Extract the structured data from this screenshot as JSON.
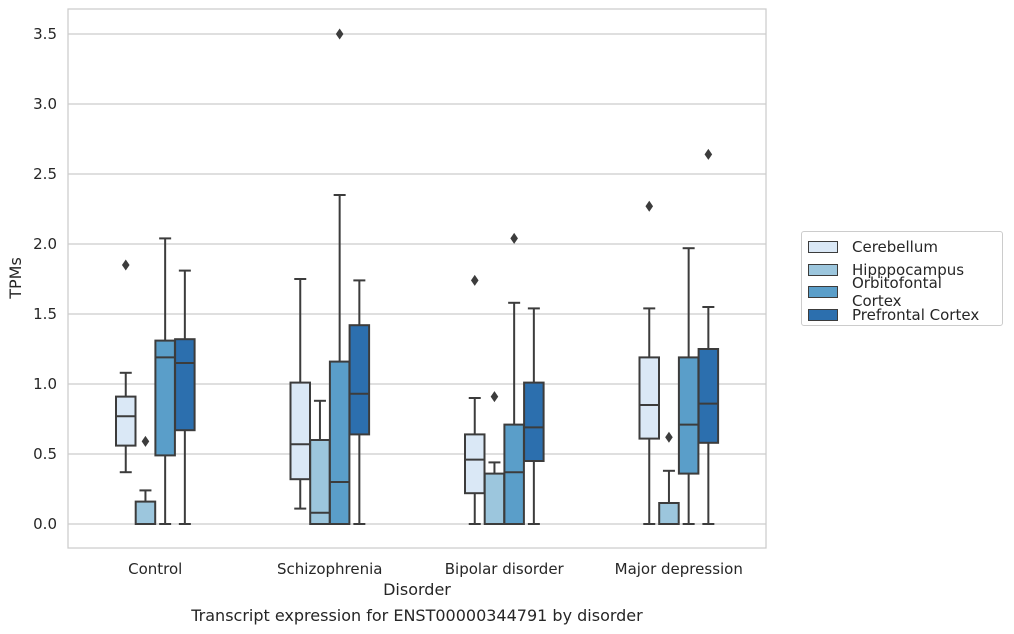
{
  "chart_data": {
    "type": "box",
    "title": "",
    "caption": "Transcript expression for ENST00000344791 by disorder",
    "xlabel": "Disorder",
    "ylabel": "TPMs",
    "ylim": [
      -0.16,
      3.68
    ],
    "yticks": [
      "0.0",
      "0.5",
      "1.0",
      "1.5",
      "2.0",
      "2.5",
      "3.0",
      "3.5"
    ],
    "grid": "horizontal",
    "legend_position": "right",
    "categories": [
      "Control",
      "Schizophrenia",
      "Bipolar disorder",
      "Major depression"
    ],
    "series": [
      {
        "name": "Cerebellum",
        "color": "#dae8f6",
        "boxes": [
          {
            "whislo": 0.37,
            "q1": 0.56,
            "med": 0.77,
            "q3": 0.91,
            "whishi": 1.08,
            "fliers": [
              1.85
            ]
          },
          {
            "whislo": 0.11,
            "q1": 0.32,
            "med": 0.57,
            "q3": 1.01,
            "whishi": 1.75,
            "fliers": []
          },
          {
            "whislo": 0.0,
            "q1": 0.22,
            "med": 0.46,
            "q3": 0.64,
            "whishi": 0.9,
            "fliers": [
              1.74
            ]
          },
          {
            "whislo": 0.0,
            "q1": 0.61,
            "med": 0.85,
            "q3": 1.19,
            "whishi": 1.54,
            "fliers": [
              2.27
            ]
          }
        ]
      },
      {
        "name": "Hipppocampus",
        "color": "#9cc6dd",
        "boxes": [
          {
            "whislo": 0.0,
            "q1": 0.0,
            "med": 0.0,
            "q3": 0.16,
            "whishi": 0.24,
            "fliers": [
              0.59
            ]
          },
          {
            "whislo": 0.0,
            "q1": 0.0,
            "med": 0.08,
            "q3": 0.6,
            "whishi": 0.88,
            "fliers": []
          },
          {
            "whislo": 0.0,
            "q1": 0.0,
            "med": 0.0,
            "q3": 0.36,
            "whishi": 0.44,
            "fliers": [
              0.91
            ]
          },
          {
            "whislo": 0.0,
            "q1": 0.0,
            "med": 0.0,
            "q3": 0.15,
            "whishi": 0.38,
            "fliers": [
              0.62
            ]
          }
        ]
      },
      {
        "name": "Orbitofontal Cortex",
        "color": "#5a9ec9",
        "boxes": [
          {
            "whislo": 0.0,
            "q1": 0.49,
            "med": 1.19,
            "q3": 1.31,
            "whishi": 2.04,
            "fliers": []
          },
          {
            "whislo": 0.0,
            "q1": 0.0,
            "med": 0.3,
            "q3": 1.16,
            "whishi": 2.35,
            "fliers": [
              3.5
            ]
          },
          {
            "whislo": 0.0,
            "q1": 0.0,
            "med": 0.37,
            "q3": 0.71,
            "whishi": 1.58,
            "fliers": [
              2.04
            ]
          },
          {
            "whislo": 0.0,
            "q1": 0.36,
            "med": 0.71,
            "q3": 1.19,
            "whishi": 1.97,
            "fliers": []
          }
        ]
      },
      {
        "name": "Prefrontal Cortex",
        "color": "#2c6fae",
        "boxes": [
          {
            "whislo": 0.0,
            "q1": 0.67,
            "med": 1.15,
            "q3": 1.32,
            "whishi": 1.81,
            "fliers": []
          },
          {
            "whislo": 0.0,
            "q1": 0.64,
            "med": 0.93,
            "q3": 1.42,
            "whishi": 1.74,
            "fliers": []
          },
          {
            "whislo": 0.0,
            "q1": 0.45,
            "med": 0.69,
            "q3": 1.01,
            "whishi": 1.54,
            "fliers": []
          },
          {
            "whislo": 0.0,
            "q1": 0.58,
            "med": 0.86,
            "q3": 1.25,
            "whishi": 1.55,
            "fliers": [
              2.64
            ]
          }
        ]
      }
    ]
  }
}
